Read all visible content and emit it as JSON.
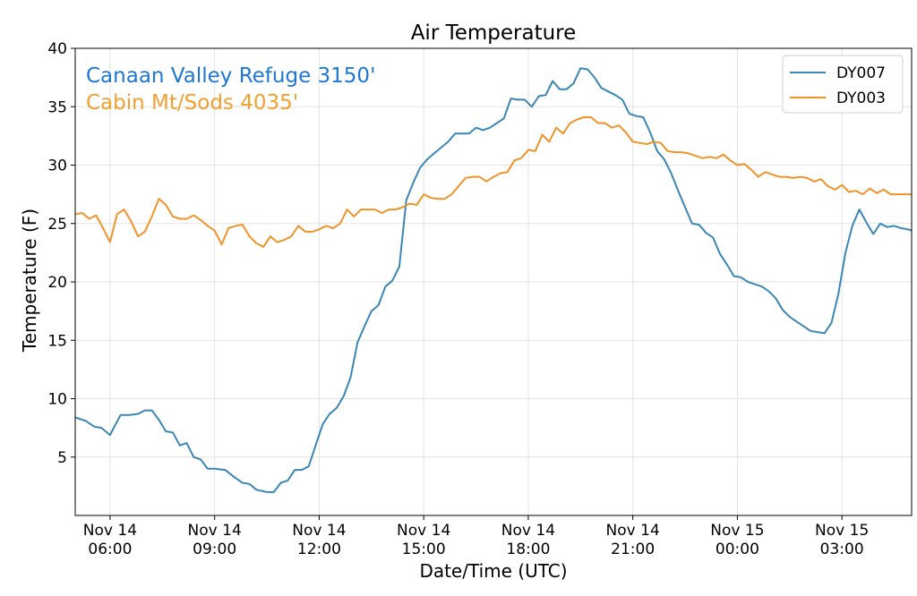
{
  "chart_data": {
    "type": "line",
    "title": "Air Temperature",
    "xlabel": "Date/Time (UTC)",
    "ylabel": "Temperature (F)",
    "ylim": [
      0,
      40
    ],
    "yticks": [
      5,
      10,
      15,
      20,
      25,
      30,
      35,
      40
    ],
    "x_unit": "hours since Nov 14 05:00 UTC",
    "xlim": [
      0,
      24
    ],
    "xticks": [
      {
        "x": 1,
        "line1": "Nov 14",
        "line2": "06:00"
      },
      {
        "x": 4,
        "line1": "Nov 14",
        "line2": "09:00"
      },
      {
        "x": 7,
        "line1": "Nov 14",
        "line2": "12:00"
      },
      {
        "x": 10,
        "line1": "Nov 14",
        "line2": "15:00"
      },
      {
        "x": 13,
        "line1": "Nov 14",
        "line2": "18:00"
      },
      {
        "x": 16,
        "line1": "Nov 14",
        "line2": "21:00"
      },
      {
        "x": 19,
        "line1": "Nov 15",
        "line2": "00:00"
      },
      {
        "x": 22,
        "line1": "Nov 15",
        "line2": "03:00"
      }
    ],
    "grid": true,
    "legend_position": "top-right",
    "annotations": [
      {
        "text": "Canaan Valley Refuge 3150'",
        "color": "#1f77d4"
      },
      {
        "text": "Cabin Mt/Sods 4035'",
        "color": "#f0a030"
      }
    ],
    "series": [
      {
        "name": "DY007",
        "color": "#3a87b5",
        "x": [
          0,
          0.3,
          0.55,
          0.75,
          1.0,
          1.3,
          1.55,
          1.8,
          2.0,
          2.2,
          2.4,
          2.6,
          2.8,
          3.0,
          3.2,
          3.4,
          3.6,
          3.8,
          4.0,
          4.3,
          4.6,
          4.8,
          5.0,
          5.2,
          5.5,
          5.7,
          5.9,
          6.1,
          6.3,
          6.5,
          6.7,
          6.9,
          7.1,
          7.3,
          7.5,
          7.7,
          7.9,
          8.1,
          8.3,
          8.5,
          8.7,
          8.9,
          9.1,
          9.3,
          9.5,
          9.7,
          9.9,
          10.1,
          10.3,
          10.5,
          10.7,
          10.9,
          11.1,
          11.3,
          11.5,
          11.7,
          11.9,
          12.1,
          12.3,
          12.5,
          12.7,
          12.9,
          13.1,
          13.3,
          13.5,
          13.7,
          13.9,
          14.1,
          14.3,
          14.5,
          14.7,
          14.9,
          15.1,
          15.3,
          15.5,
          15.7,
          15.9,
          16.1,
          16.3,
          16.5,
          16.7,
          16.9,
          17.1,
          17.3,
          17.5,
          17.7,
          17.9,
          18.1,
          18.3,
          18.5,
          18.7,
          18.9,
          19.1,
          19.3,
          19.5,
          19.7,
          19.9,
          20.1,
          20.3,
          20.5,
          20.7,
          20.9,
          21.1,
          21.3,
          21.5,
          21.7,
          21.9,
          22.1,
          22.3,
          22.5,
          22.7,
          22.9,
          23.1,
          23.3,
          23.5,
          23.7,
          23.9,
          24.0
        ],
        "values": [
          8.4,
          8.1,
          7.6,
          7.5,
          6.9,
          8.6,
          8.6,
          8.7,
          9.0,
          9.0,
          8.2,
          7.2,
          7.1,
          6.0,
          6.2,
          5.0,
          4.8,
          4.0,
          4.0,
          3.9,
          3.2,
          2.8,
          2.7,
          2.2,
          2.0,
          2.0,
          2.8,
          3.0,
          3.9,
          3.9,
          4.2,
          6.0,
          7.8,
          8.7,
          9.2,
          10.2,
          11.8,
          14.8,
          16.2,
          17.5,
          18.0,
          19.6,
          20.1,
          21.3,
          27.0,
          28.5,
          29.8,
          30.5,
          31.0,
          31.5,
          32.0,
          32.7,
          32.7,
          32.7,
          33.2,
          33.0,
          33.2,
          33.6,
          34.0,
          35.7,
          35.6,
          35.6,
          35.0,
          35.9,
          36.0,
          37.2,
          36.5,
          36.5,
          37.0,
          38.3,
          38.2,
          37.5,
          36.6,
          36.3,
          36.0,
          35.6,
          34.4,
          34.2,
          34.1,
          32.8,
          31.2,
          30.5,
          29.3,
          27.8,
          26.4,
          25.0,
          24.9,
          24.2,
          23.8,
          22.4,
          21.5,
          20.5,
          20.4,
          20.0,
          19.8,
          19.6,
          19.2,
          18.6,
          17.6,
          17.0,
          16.6,
          16.2,
          15.8,
          15.7,
          15.6,
          16.5,
          19.0,
          22.5,
          24.8,
          26.2,
          25.1,
          24.1,
          25.0,
          24.7,
          24.8,
          24.6,
          24.5,
          24.4
        ],
        "values_note": ""
      },
      {
        "name": "DY003",
        "color": "#f0932b",
        "x": [
          0,
          0.2,
          0.4,
          0.6,
          0.8,
          1.0,
          1.2,
          1.4,
          1.6,
          1.8,
          2.0,
          2.2,
          2.4,
          2.6,
          2.8,
          3.0,
          3.2,
          3.4,
          3.6,
          3.8,
          4.0,
          4.2,
          4.4,
          4.6,
          4.8,
          5.0,
          5.2,
          5.4,
          5.6,
          5.8,
          6.0,
          6.2,
          6.4,
          6.6,
          6.8,
          7.0,
          7.2,
          7.4,
          7.6,
          7.8,
          8.0,
          8.2,
          8.4,
          8.6,
          8.8,
          9.0,
          9.2,
          9.4,
          9.6,
          9.8,
          10.0,
          10.2,
          10.4,
          10.6,
          10.8,
          11.0,
          11.2,
          11.4,
          11.6,
          11.8,
          12.0,
          12.2,
          12.4,
          12.6,
          12.8,
          13.0,
          13.2,
          13.4,
          13.6,
          13.8,
          14.0,
          14.2,
          14.4,
          14.6,
          14.8,
          15.0,
          15.2,
          15.4,
          15.6,
          15.8,
          16.0,
          16.2,
          16.4,
          16.6,
          16.8,
          17.0,
          17.2,
          17.4,
          17.6,
          17.8,
          18.0,
          18.2,
          18.4,
          18.6,
          18.8,
          19.0,
          19.2,
          19.4,
          19.6,
          19.8,
          20.0,
          20.2,
          20.4,
          20.6,
          20.8,
          21.0,
          21.2,
          21.4,
          21.6,
          21.8,
          22.0,
          22.2,
          22.4,
          22.6,
          22.8,
          23.0,
          23.2,
          23.4,
          23.6,
          23.8,
          24.0
        ],
        "values": [
          25.8,
          25.9,
          25.4,
          25.7,
          24.6,
          23.4,
          25.8,
          26.2,
          25.2,
          23.9,
          24.3,
          25.6,
          27.1,
          26.6,
          25.6,
          25.4,
          25.4,
          25.7,
          25.3,
          24.8,
          24.4,
          23.2,
          24.6,
          24.8,
          24.9,
          23.9,
          23.3,
          23.0,
          23.9,
          23.4,
          23.6,
          23.9,
          24.8,
          24.3,
          24.3,
          24.5,
          24.8,
          24.6,
          25.0,
          26.2,
          25.6,
          26.2,
          26.2,
          26.2,
          25.9,
          26.2,
          26.2,
          26.4,
          26.7,
          26.6,
          27.5,
          27.2,
          27.1,
          27.1,
          27.5,
          28.2,
          28.9,
          29.0,
          29.0,
          28.6,
          29.0,
          29.3,
          29.4,
          30.4,
          30.6,
          31.3,
          31.2,
          32.6,
          32.0,
          33.2,
          32.7,
          33.6,
          33.9,
          34.1,
          34.1,
          33.6,
          33.6,
          33.2,
          33.4,
          32.8,
          32.0,
          31.9,
          31.8,
          32.0,
          31.9,
          31.2,
          31.1,
          31.1,
          31.0,
          30.8,
          30.6,
          30.7,
          30.6,
          30.9,
          30.4,
          30.0,
          30.1,
          29.6,
          29.0,
          29.4,
          29.2,
          29.0,
          29.0,
          28.9,
          29.0,
          28.9,
          28.6,
          28.8,
          28.2,
          27.9,
          28.3,
          27.7,
          27.8,
          27.5,
          28.0,
          27.6,
          27.9,
          27.5,
          27.5,
          27.5,
          27.5
        ]
      }
    ]
  }
}
